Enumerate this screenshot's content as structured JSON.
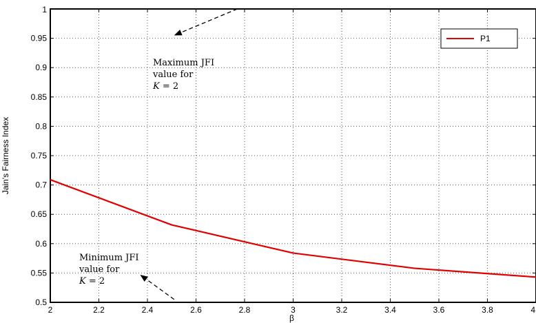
{
  "chart_data": {
    "type": "line",
    "x": [
      2,
      2.5,
      3,
      3.5,
      4
    ],
    "series": [
      {
        "name": "P1",
        "values": [
          0.709,
          0.632,
          0.584,
          0.558,
          0.543
        ],
        "color": "#e00000"
      }
    ],
    "xlabel": "β",
    "ylabel": "Jain's Fairness Index",
    "xlim": [
      2,
      4
    ],
    "ylim": [
      0.5,
      1
    ],
    "xticks": [
      2,
      2.2,
      2.4,
      2.6,
      2.8,
      3,
      3.2,
      3.4,
      3.6,
      3.8,
      4
    ],
    "xtick_labels": [
      "2",
      "2.2",
      "2.4",
      "2.6",
      "2.8",
      "3",
      "3.2",
      "3.4",
      "3.6",
      "3.8",
      "4"
    ],
    "yticks": [
      0.5,
      0.55,
      0.6,
      0.65,
      0.7,
      0.75,
      0.8,
      0.85,
      0.9,
      0.95,
      1
    ],
    "ytick_labels": [
      "0.5",
      "0.55",
      "0.6",
      "0.65",
      "0.7",
      "0.75",
      "0.8",
      "0.85",
      "0.9",
      "0.95",
      "1"
    ],
    "grid": true,
    "legend_position": "top-right",
    "annotations": {
      "max": {
        "lines": [
          "Maximum JFI",
          "value for"
        ],
        "equation": {
          "var": "K",
          "rest": " = 2"
        },
        "arrow_from": [
          2.77,
          1.0
        ],
        "arrow_to": [
          2.51,
          0.955
        ]
      },
      "min": {
        "lines": [
          "Minimum JFI",
          "value for"
        ],
        "equation": {
          "var": "K",
          "rest": " = 2"
        },
        "arrow_from": [
          2.51,
          0.505
        ],
        "arrow_to": [
          2.37,
          0.547
        ]
      }
    }
  }
}
